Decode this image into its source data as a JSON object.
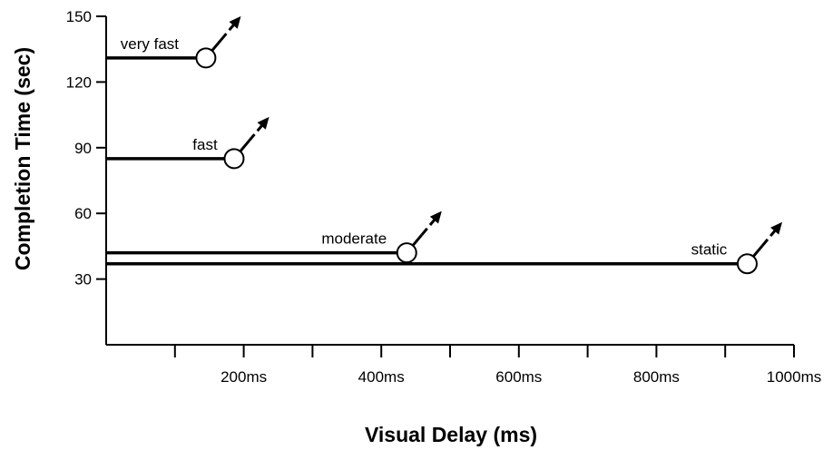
{
  "chart_data": {
    "type": "line",
    "xlabel": "Visual Delay (ms)",
    "ylabel": "Completion Time (sec)",
    "xlim": [
      0,
      1000
    ],
    "ylim": [
      0,
      150
    ],
    "x_ticks": [
      100,
      200,
      300,
      400,
      500,
      600,
      700,
      800,
      900,
      1000
    ],
    "x_tick_labels": [
      {
        "value": 200,
        "label": "200ms"
      },
      {
        "value": 400,
        "label": "400ms"
      },
      {
        "value": 600,
        "label": "600ms"
      },
      {
        "value": 800,
        "label": "800ms"
      },
      {
        "value": 1000,
        "label": "1000ms"
      }
    ],
    "y_ticks": [
      30,
      60,
      90,
      120,
      150
    ],
    "grid": false,
    "series": [
      {
        "name": "very fast",
        "x": [
          0,
          145
        ],
        "y": [
          131,
          131
        ],
        "trend": "increasing beyond 145ms"
      },
      {
        "name": "fast",
        "x": [
          0,
          186
        ],
        "y": [
          85,
          85
        ],
        "trend": "increasing beyond 186ms"
      },
      {
        "name": "moderate",
        "x": [
          0,
          437
        ],
        "y": [
          42,
          42
        ],
        "trend": "increasing beyond 437ms"
      },
      {
        "name": "static",
        "x": [
          0,
          932
        ],
        "y": [
          37,
          37
        ],
        "trend": "increasing beyond 932ms"
      }
    ]
  }
}
